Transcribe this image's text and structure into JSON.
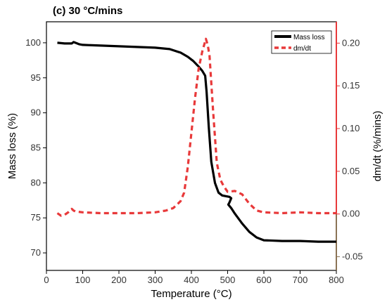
{
  "chart_data": {
    "type": "line",
    "title": "(c) 30 °C/mins",
    "xlabel": "Temperature (°C)",
    "ylabel_left": "Mass loss (%)",
    "ylabel_right": "dm/dt (%/mins)",
    "xlim": [
      0,
      800
    ],
    "ylim_left": [
      67.5,
      103
    ],
    "ylim_right": [
      -0.066,
      0.225
    ],
    "x_ticks": [
      0,
      100,
      200,
      300,
      400,
      500,
      600,
      700,
      800
    ],
    "y_left_ticks": [
      70,
      75,
      80,
      85,
      90,
      95,
      100
    ],
    "y_right_ticks": [
      -0.05,
      0.0,
      0.05,
      0.1,
      0.15,
      0.2
    ],
    "y_right_tick_labels": [
      "-0.05",
      "0.00",
      "0.05",
      "0.10",
      "0.15",
      "0.20"
    ],
    "grid": false,
    "legend": {
      "position": "top-right",
      "entries": [
        "Mass loss",
        "dm/dt"
      ]
    },
    "colors": {
      "mass_loss": "#000000",
      "dmdt": "#e8393a",
      "right_axis": "#e8393a",
      "right_axis_lower": "#8b7355"
    },
    "series": [
      {
        "name": "Mass loss",
        "axis": "left",
        "x": [
          30,
          50,
          70,
          75,
          80,
          90,
          100,
          150,
          200,
          250,
          300,
          340,
          370,
          390,
          405,
          420,
          430,
          438,
          442,
          448,
          455,
          465,
          475,
          485,
          495,
          505,
          510,
          505,
          502,
          510,
          520,
          540,
          560,
          580,
          600,
          650,
          700,
          750,
          800
        ],
        "y": [
          100.0,
          99.9,
          99.9,
          100.1,
          100.0,
          99.8,
          99.7,
          99.6,
          99.5,
          99.4,
          99.3,
          99.1,
          98.6,
          98.0,
          97.4,
          96.6,
          96.0,
          95.3,
          93.0,
          88.0,
          83.0,
          80.0,
          78.6,
          78.2,
          78.1,
          78.0,
          77.8,
          77.2,
          76.9,
          76.4,
          75.6,
          74.2,
          73.0,
          72.2,
          71.8,
          71.7,
          71.7,
          71.6,
          71.6
        ]
      },
      {
        "name": "dm/dt",
        "axis": "right",
        "x": [
          30,
          40,
          50,
          60,
          70,
          75,
          80,
          100,
          150,
          200,
          250,
          300,
          330,
          350,
          370,
          380,
          390,
          400,
          410,
          420,
          430,
          440,
          445,
          450,
          460,
          470,
          480,
          490,
          500,
          520,
          540,
          560,
          580,
          600,
          650,
          700,
          750,
          800
        ],
        "y": [
          0.001,
          -0.002,
          -0.001,
          0.002,
          0.006,
          0.004,
          0.003,
          0.002,
          0.001,
          0.001,
          0.001,
          0.002,
          0.004,
          0.007,
          0.015,
          0.025,
          0.055,
          0.095,
          0.135,
          0.17,
          0.19,
          0.205,
          0.198,
          0.185,
          0.12,
          0.06,
          0.04,
          0.032,
          0.026,
          0.027,
          0.023,
          0.012,
          0.004,
          0.002,
          0.001,
          0.002,
          0.001,
          0.001
        ]
      }
    ]
  }
}
